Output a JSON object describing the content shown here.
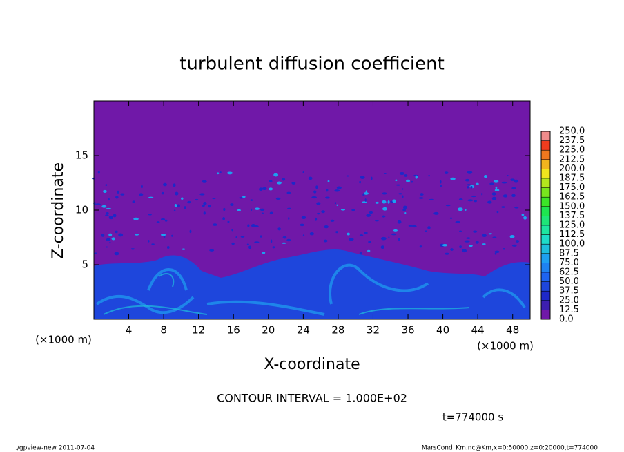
{
  "chart_data": {
    "type": "contour",
    "title": "turbulent diffusion coefficient",
    "xlabel": "X-coordinate",
    "ylabel": "Z-coordinate",
    "xunit": "(×1000 m)",
    "yunit": "(×1000 m)",
    "xlim": [
      0,
      50
    ],
    "xticks": [
      4,
      8,
      12,
      16,
      20,
      24,
      28,
      32,
      36,
      40,
      44,
      48
    ],
    "ylim": [
      0,
      20
    ],
    "yticks": [
      5,
      10,
      15
    ],
    "colorbar": {
      "levels": [
        {
          "value": 0,
          "label": "0.0"
        },
        {
          "value": 12.5,
          "label": "12.5"
        },
        {
          "value": 25,
          "label": "25.0"
        },
        {
          "value": 37.5,
          "label": "37.5"
        },
        {
          "value": 50,
          "label": "50.0"
        },
        {
          "value": 62.5,
          "label": "62.5"
        },
        {
          "value": 75,
          "label": "75.0"
        },
        {
          "value": 87.5,
          "label": "87.5"
        },
        {
          "value": 100,
          "label": "100.0"
        },
        {
          "value": 112.5,
          "label": "112.5"
        },
        {
          "value": 125,
          "label": "125.0"
        },
        {
          "value": 137.5,
          "label": "137.5"
        },
        {
          "value": 150,
          "label": "150.0"
        },
        {
          "value": 162.5,
          "label": "162.5"
        },
        {
          "value": 175,
          "label": "175.0"
        },
        {
          "value": 187.5,
          "label": "187.5"
        },
        {
          "value": 200,
          "label": "200.0"
        },
        {
          "value": 212.5,
          "label": "212.5"
        },
        {
          "value": 225,
          "label": "225.0"
        },
        {
          "value": 237.5,
          "label": "237.5"
        },
        {
          "value": 250,
          "label": "250.0"
        }
      ],
      "colors": [
        "#7018a8",
        "#3c1eb0",
        "#1e28c8",
        "#1e46dc",
        "#1e64f0",
        "#1e82f0",
        "#1ea0f0",
        "#1ebedc",
        "#1edcc8",
        "#1ee6a0",
        "#1ee678",
        "#1ee650",
        "#3ce628",
        "#78e61e",
        "#b4e61e",
        "#f0e61e",
        "#f0b41e",
        "#f0781e",
        "#f03c1e",
        "#f08c8c"
      ]
    },
    "contour_interval": "CONTOUR INTERVAL = 1.000E+02",
    "time": "t=774000 s"
  },
  "footer": {
    "left": "./gpview-new  2011-07-04",
    "right": "MarsCond_Km.nc@Km,x=0:50000,z=0:20000,t=774000"
  }
}
